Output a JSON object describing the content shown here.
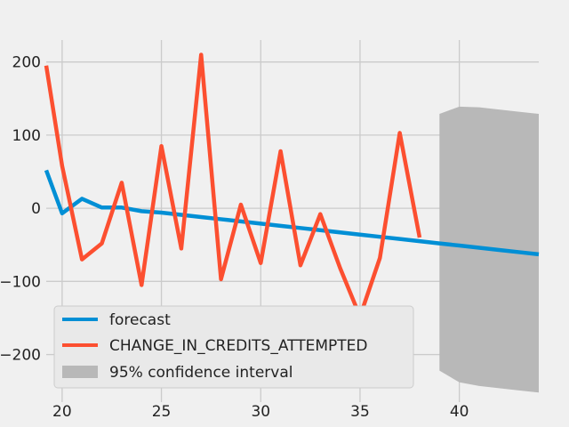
{
  "chart_data": {
    "type": "line",
    "title": "",
    "xlabel": "",
    "ylabel": "",
    "xlim": [
      19.2,
      44
    ],
    "ylim": [
      -265,
      230
    ],
    "xticks": [
      20,
      25,
      30,
      35,
      40
    ],
    "yticks": [
      -200,
      -100,
      0,
      100,
      200
    ],
    "ytick_labels": [
      "−200",
      "−100",
      "0",
      "100",
      "200"
    ],
    "grid": true,
    "legend_position": "lower-left",
    "series": [
      {
        "name": "forecast",
        "color": "#008fd5",
        "x": [
          19.2,
          20,
          21,
          22,
          23,
          24,
          25,
          26,
          27,
          28,
          29,
          30,
          31,
          32,
          33,
          34,
          35,
          36,
          37,
          38,
          39,
          40,
          41,
          42,
          43,
          44
        ],
        "y": [
          52,
          -7,
          13,
          1,
          1,
          -4,
          -6,
          -9,
          -12,
          -15,
          -18,
          -21,
          -24,
          -27,
          -30,
          -33,
          -36,
          -39,
          -42,
          -45,
          -48,
          -51,
          -54,
          -57,
          -60,
          -63
        ]
      },
      {
        "name": "CHANGE_IN_CREDITS_ATTEMPTED",
        "color": "#fc4f30",
        "x": [
          19.2,
          20,
          21,
          22,
          23,
          24,
          25,
          26,
          27,
          28,
          29,
          30,
          31,
          32,
          33,
          34,
          35,
          36,
          37,
          38
        ],
        "y": [
          195,
          58,
          -70,
          -48,
          35,
          -105,
          85,
          -55,
          210,
          -97,
          5,
          -75,
          78,
          -78,
          -8,
          -82,
          -148,
          -68,
          103,
          -40
        ]
      }
    ],
    "confidence_interval": {
      "name": "95% confidence interval",
      "color": "#b8b8b8",
      "x": [
        39,
        40,
        41,
        42,
        43,
        44
      ],
      "lower": [
        -222,
        -238,
        -243,
        -246,
        -249,
        -252
      ],
      "upper": [
        129,
        139,
        138,
        135,
        132,
        129
      ]
    }
  }
}
